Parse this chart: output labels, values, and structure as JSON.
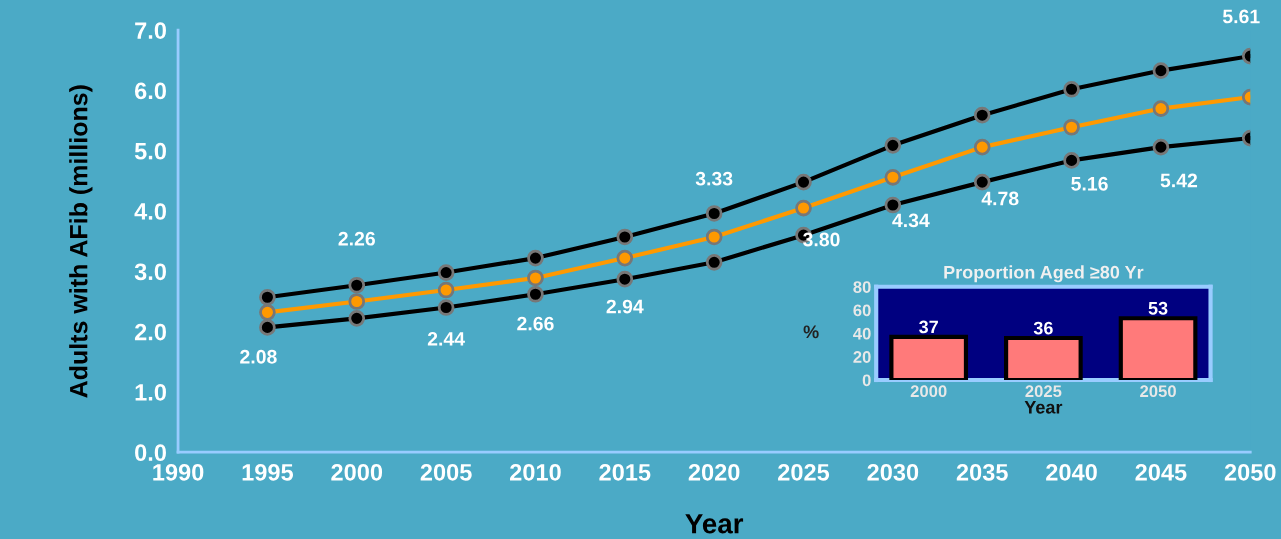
{
  "chart_data": [
    {
      "type": "line",
      "xlabel": "Year",
      "ylabel": "Adults with AFib (millions)",
      "x": [
        1995,
        2000,
        2005,
        2010,
        2015,
        2020,
        2025,
        2030,
        2035,
        2040,
        2045,
        2050
      ],
      "series": [
        {
          "color": "#000000",
          "values": [
            2.57,
            2.77,
            2.98,
            3.22,
            3.57,
            3.96,
            4.48,
            5.09,
            5.59,
            6.02,
            6.33,
            6.57
          ]
        },
        {
          "color": "#ff9900",
          "values": [
            2.32,
            2.5,
            2.69,
            2.89,
            3.22,
            3.57,
            4.05,
            4.56,
            5.06,
            5.39,
            5.7,
            5.89
          ]
        },
        {
          "color": "#000000",
          "values": [
            2.07,
            2.22,
            2.4,
            2.62,
            2.87,
            3.15,
            3.6,
            4.1,
            4.48,
            4.84,
            5.06,
            5.21
          ]
        }
      ],
      "marker": "circle",
      "grid": false,
      "legend": false,
      "xlim": [
        1990,
        2050
      ],
      "xticks": [
        1990,
        1995,
        2000,
        2005,
        2010,
        2015,
        2020,
        2025,
        2030,
        2035,
        2040,
        2045,
        2050
      ],
      "ylim": [
        0,
        7
      ],
      "yticks": [
        {
          "value": 0,
          "label": "0.0"
        },
        {
          "value": 1,
          "label": "1.0"
        },
        {
          "value": 2,
          "label": "2.0"
        },
        {
          "value": 3,
          "label": "3.0"
        },
        {
          "value": 4,
          "label": "4.0"
        },
        {
          "value": 5,
          "label": "5.0"
        },
        {
          "value": 6,
          "label": "6.0"
        },
        {
          "value": 7,
          "label": "7.0"
        }
      ],
      "annotations": [
        "2.08",
        "2.26",
        "2.44",
        "2.66",
        "2.94",
        "3.33",
        "3.80",
        "4.34",
        "4.78",
        "5.16",
        "5.42",
        "5.61"
      ]
    },
    {
      "type": "bar",
      "title": "Proportion Aged ≥80 Yr",
      "xlabel": "Year",
      "ylabel": "%",
      "categories": [
        "2000",
        "2025",
        "2050"
      ],
      "values": [
        37,
        36,
        53
      ],
      "color": "#ff7a7a",
      "data_labels": true,
      "ylim": [
        0,
        80
      ],
      "yticks": [
        0,
        20,
        40,
        60,
        80
      ],
      "grid": false
    }
  ]
}
